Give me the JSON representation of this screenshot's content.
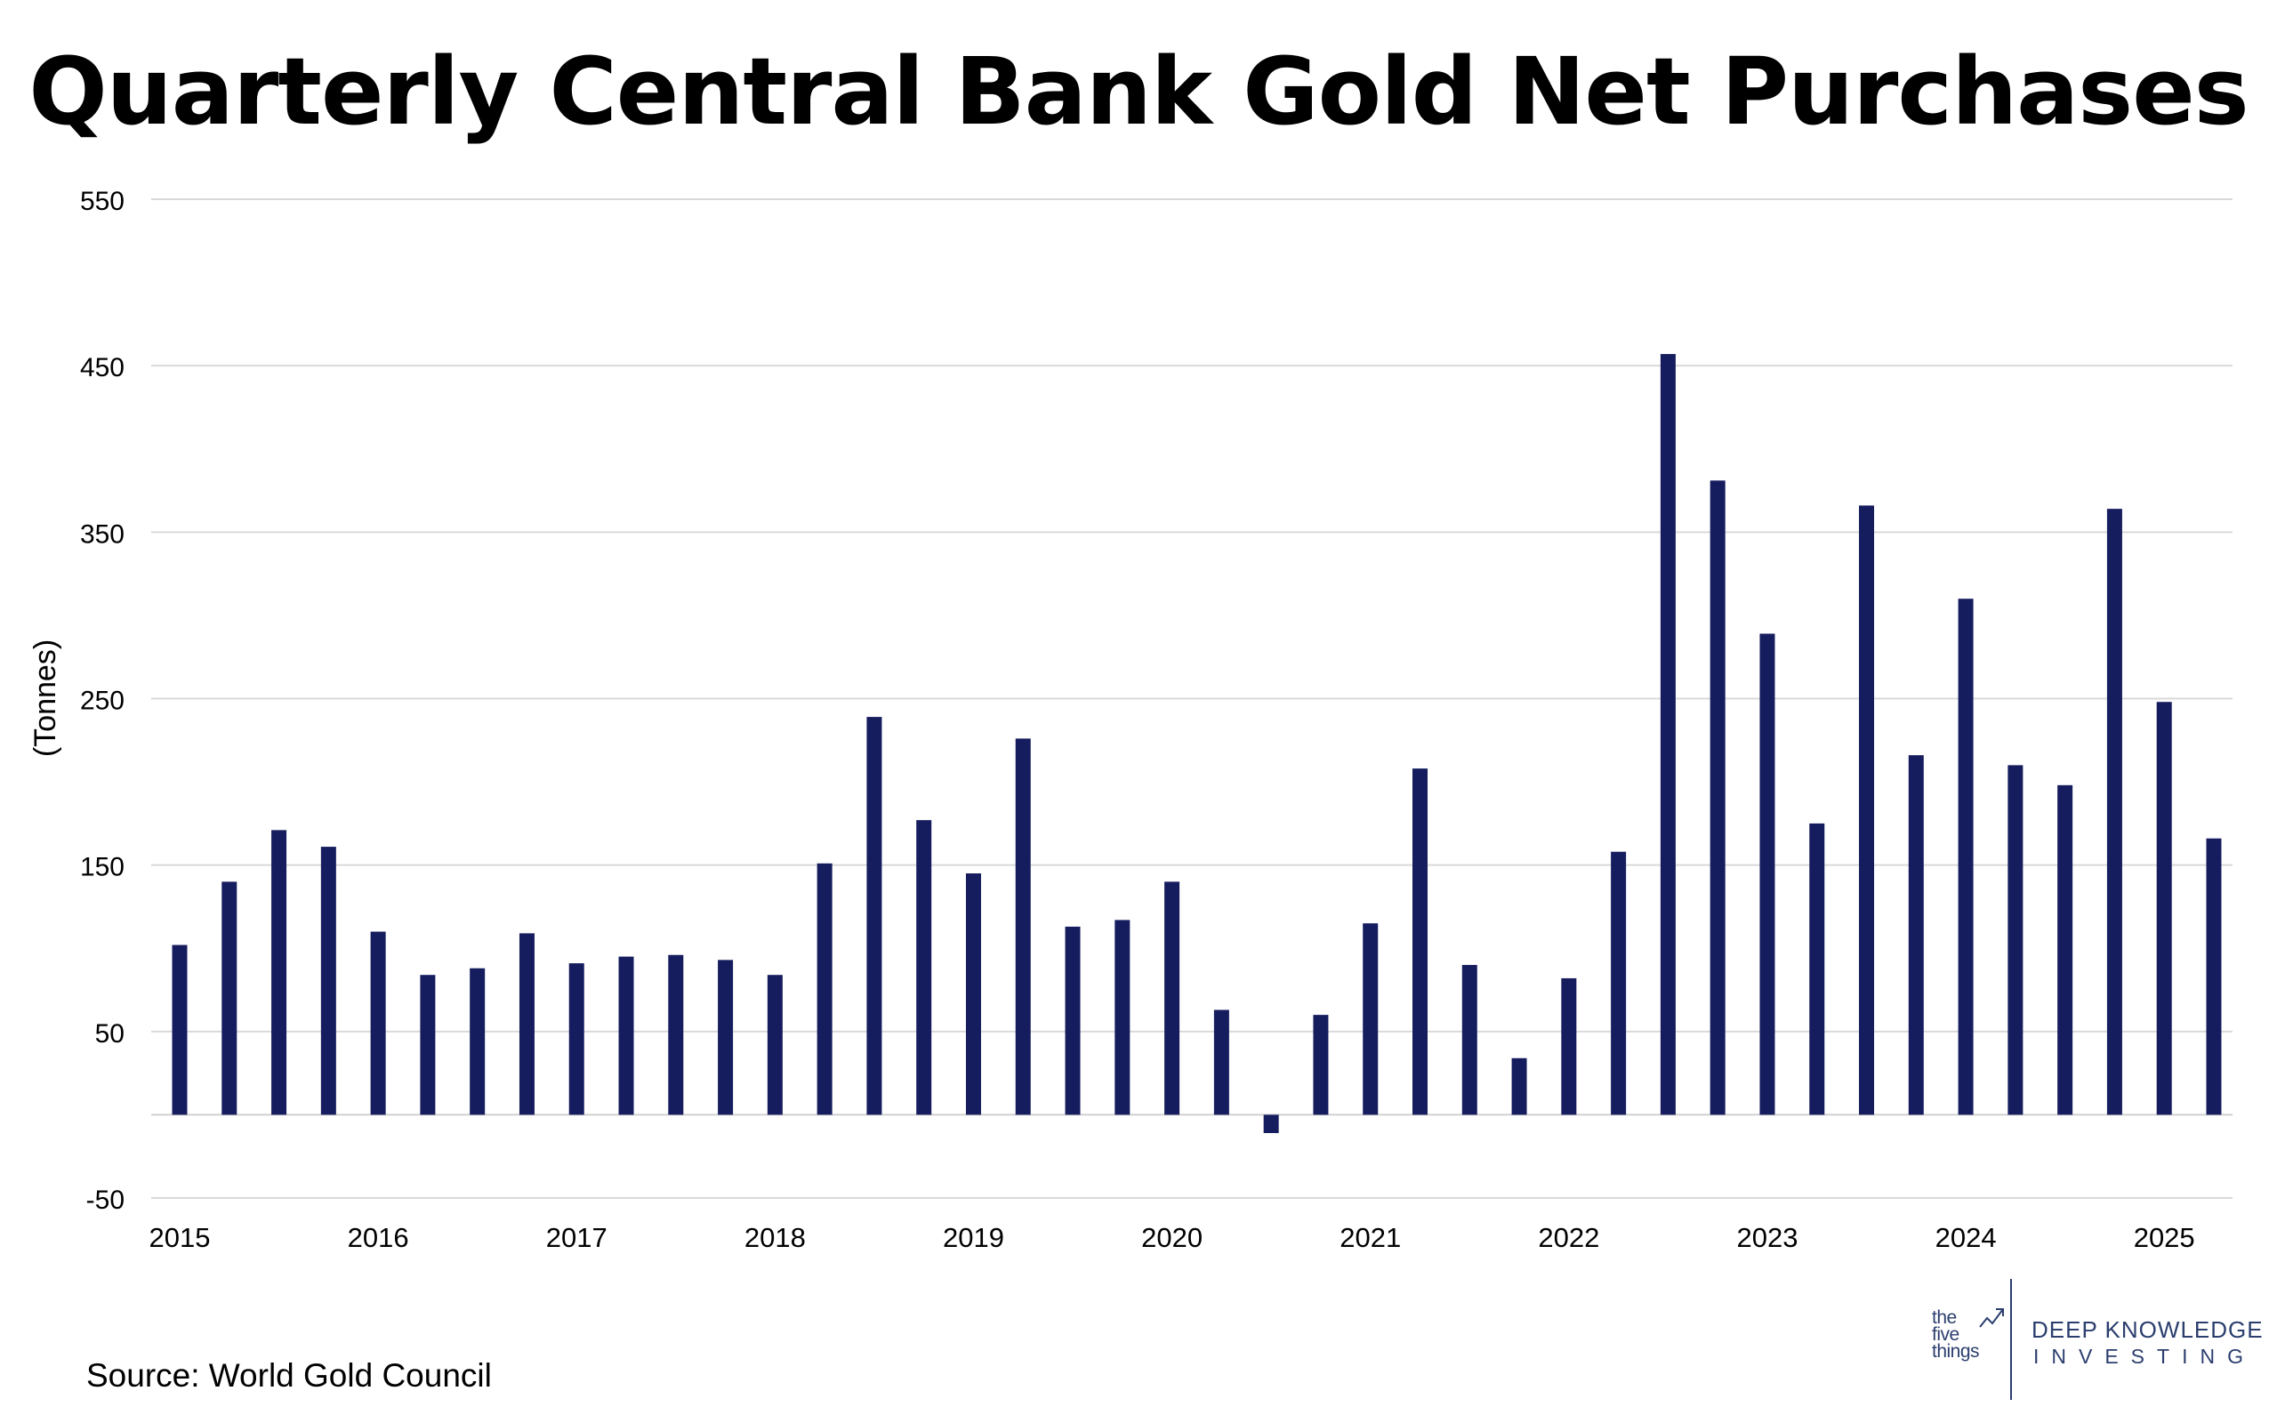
{
  "chart_data": {
    "type": "bar",
    "title": "Quarterly Central Bank Gold Net Purchases",
    "ylabel": "(Tonnes)",
    "xlabel": "",
    "ylim": [
      -50,
      550
    ],
    "yticks": [
      550,
      450,
      350,
      250,
      150,
      50,
      -50
    ],
    "grid": true,
    "year_labels": [
      "2015",
      "2016",
      "2017",
      "2018",
      "2019",
      "2020",
      "2021",
      "2022",
      "2023",
      "2024",
      "2025"
    ],
    "categories": [
      "2015 Q1",
      "2015 Q2",
      "2015 Q3",
      "2015 Q4",
      "2016 Q1",
      "2016 Q2",
      "2016 Q3",
      "2016 Q4",
      "2017 Q1",
      "2017 Q2",
      "2017 Q3",
      "2017 Q4",
      "2018 Q1",
      "2018 Q2",
      "2018 Q3",
      "2018 Q4",
      "2019 Q1",
      "2019 Q2",
      "2019 Q3",
      "2019 Q4",
      "2020 Q1",
      "2020 Q2",
      "2020 Q3",
      "2020 Q4",
      "2021 Q1",
      "2021 Q2",
      "2021 Q3",
      "2021 Q4",
      "2022 Q1",
      "2022 Q2",
      "2022 Q3",
      "2022 Q4",
      "2023 Q1",
      "2023 Q2",
      "2023 Q3",
      "2023 Q4",
      "2024 Q1",
      "2024 Q2",
      "2024 Q3",
      "2024 Q4",
      "2025 Q1",
      "2025 Q2"
    ],
    "values": [
      102,
      140,
      171,
      161,
      110,
      84,
      88,
      109,
      91,
      95,
      96,
      93,
      84,
      151,
      239,
      177,
      145,
      226,
      113,
      117,
      140,
      63,
      -11,
      60,
      115,
      208,
      90,
      34,
      82,
      158,
      457,
      381,
      289,
      175,
      366,
      216,
      310,
      210,
      198,
      364,
      248,
      166
    ],
    "bar_color": "#161d5e"
  },
  "source": "Source: World Gold Council",
  "logo": {
    "left_line1": "the",
    "left_line2": "five",
    "left_line3": "things",
    "right_line1": "DEEP KNOWLEDGE",
    "right_line2": "INVESTING"
  }
}
